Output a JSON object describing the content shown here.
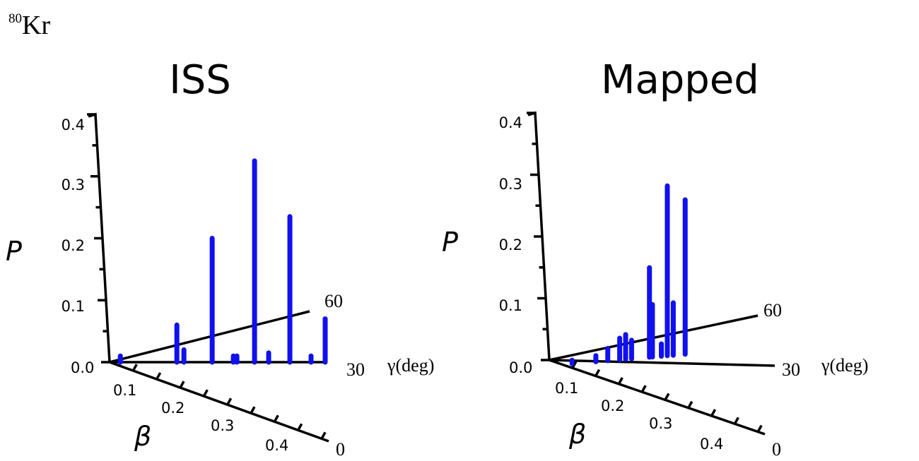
{
  "nucleus": {
    "mass": "80",
    "symbol": "Kr"
  },
  "axis_labels": {
    "p": "P",
    "beta": "β",
    "gamma": "γ(deg)"
  },
  "bar_color": "#1010f0",
  "chart_data": [
    {
      "type": "bar3d",
      "title": "ISS",
      "z_ticks": [
        "0.0",
        "0.1",
        "0.2",
        "0.3",
        "0.4"
      ],
      "beta_ticks": [
        "0.1",
        "0.2",
        "0.3",
        "0.4",
        "0"
      ],
      "gamma_ticks": [
        "30",
        "60"
      ],
      "zlim": [
        0,
        0.4
      ],
      "bars": [
        {
          "beta": 0.0,
          "gamma": 30,
          "p": 0.01
        },
        {
          "beta": 0.08,
          "gamma": 30,
          "p": 0.06
        },
        {
          "beta": 0.09,
          "gamma": 30,
          "p": 0.02
        },
        {
          "beta": 0.13,
          "gamma": 30,
          "p": 0.2
        },
        {
          "beta": 0.16,
          "gamma": 30,
          "p": 0.01
        },
        {
          "beta": 0.165,
          "gamma": 30,
          "p": 0.01
        },
        {
          "beta": 0.19,
          "gamma": 30,
          "p": 0.325
        },
        {
          "beta": 0.21,
          "gamma": 30,
          "p": 0.015
        },
        {
          "beta": 0.24,
          "gamma": 30,
          "p": 0.235
        },
        {
          "beta": 0.27,
          "gamma": 30,
          "p": 0.01
        },
        {
          "beta": 0.29,
          "gamma": 30,
          "p": 0.07
        }
      ]
    },
    {
      "type": "bar3d",
      "title": "Mapped",
      "z_ticks": [
        "0.0",
        "0.1",
        "0.2",
        "0.3",
        "0.4"
      ],
      "beta_ticks": [
        "0.1",
        "0.2",
        "0.3",
        "0.4",
        "0"
      ],
      "gamma_ticks": [
        "30",
        "60"
      ],
      "zlim": [
        0,
        0.4
      ],
      "bars": [
        {
          "beta": 0.02,
          "gamma": 45,
          "p": 0.005
        },
        {
          "beta": 0.06,
          "gamma": 45,
          "p": 0.01
        },
        {
          "beta": 0.08,
          "gamma": 45,
          "p": 0.02
        },
        {
          "beta": 0.1,
          "gamma": 45,
          "p": 0.035
        },
        {
          "beta": 0.11,
          "gamma": 45,
          "p": 0.04
        },
        {
          "beta": 0.12,
          "gamma": 45,
          "p": 0.03
        },
        {
          "beta": 0.15,
          "gamma": 45,
          "p": 0.145
        },
        {
          "beta": 0.155,
          "gamma": 45,
          "p": 0.085
        },
        {
          "beta": 0.17,
          "gamma": 45,
          "p": 0.02
        },
        {
          "beta": 0.18,
          "gamma": 45,
          "p": 0.275
        },
        {
          "beta": 0.19,
          "gamma": 45,
          "p": 0.085
        },
        {
          "beta": 0.21,
          "gamma": 45,
          "p": 0.25
        }
      ]
    }
  ]
}
